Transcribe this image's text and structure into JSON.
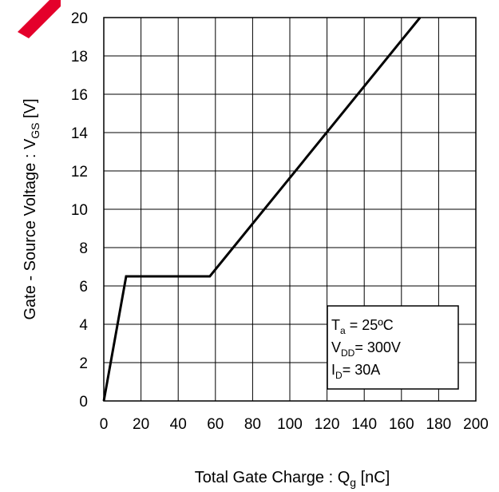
{
  "chart_data": {
    "type": "line",
    "xlabel": "Total Gate Charge : Q",
    "xlabel_sub": "g",
    "xlabel_unit": " [nC]",
    "ylabel": "Gate - Source Voltage : V",
    "ylabel_sub": "GS",
    "ylabel_unit": " [V]",
    "xlim": [
      0,
      200
    ],
    "ylim": [
      0,
      20
    ],
    "x_ticks": [
      0,
      20,
      40,
      60,
      80,
      100,
      120,
      140,
      160,
      180,
      200
    ],
    "y_ticks": [
      0,
      2,
      4,
      6,
      8,
      10,
      12,
      14,
      16,
      18,
      20
    ],
    "grid": true,
    "series": [
      {
        "x": [
          0,
          12,
          57,
          170
        ],
        "y": [
          0,
          6.5,
          6.5,
          20
        ]
      }
    ],
    "annotations": [
      {
        "main": "T",
        "sub": "a",
        "rest": " = 25ºC"
      },
      {
        "main": "V",
        "sub": "DD",
        "rest": "= 300V"
      },
      {
        "main": "I",
        "sub": "D",
        "rest": "= 30A"
      }
    ],
    "annotation_position": "bottom-right"
  }
}
